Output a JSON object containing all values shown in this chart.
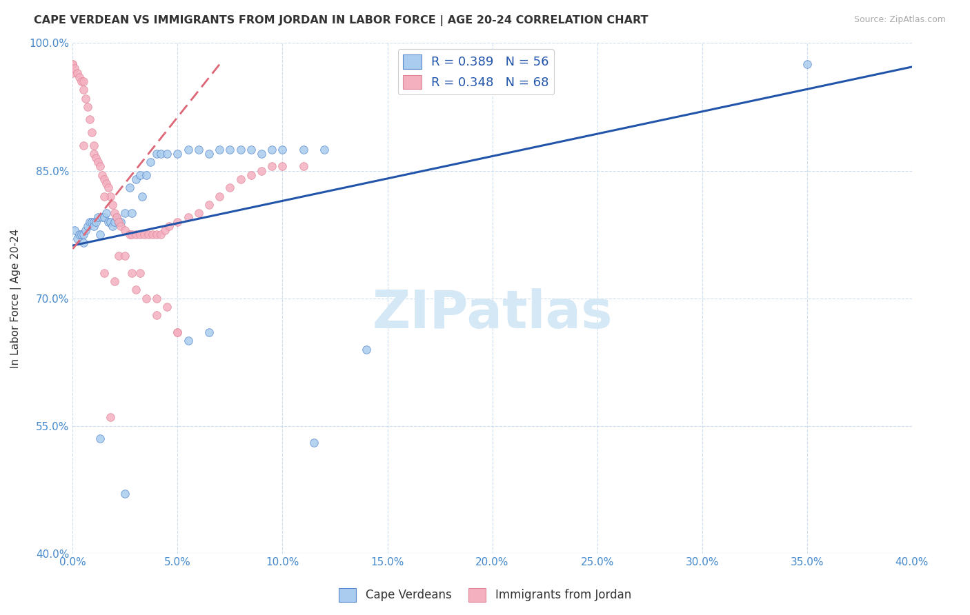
{
  "title": "CAPE VERDEAN VS IMMIGRANTS FROM JORDAN IN LABOR FORCE | AGE 20-24 CORRELATION CHART",
  "source": "Source: ZipAtlas.com",
  "ylabel": "In Labor Force | Age 20-24",
  "xmin": 0.0,
  "xmax": 0.4,
  "ymin": 0.4,
  "ymax": 1.0,
  "xtick_labels": [
    "0.0%",
    "5.0%",
    "10.0%",
    "15.0%",
    "20.0%",
    "25.0%",
    "30.0%",
    "35.0%",
    "40.0%"
  ],
  "xtick_vals": [
    0.0,
    0.05,
    0.1,
    0.15,
    0.2,
    0.25,
    0.3,
    0.35,
    0.4
  ],
  "ytick_labels": [
    "40.0%",
    "55.0%",
    "70.0%",
    "85.0%",
    "100.0%"
  ],
  "ytick_vals": [
    0.4,
    0.55,
    0.7,
    0.85,
    1.0
  ],
  "legend_label_blue": "R = 0.389   N = 56",
  "legend_label_pink": "R = 0.348   N = 68",
  "bottom_legend_blue": "Cape Verdeans",
  "bottom_legend_pink": "Immigrants from Jordan",
  "watermark": "ZIPatlas",
  "blue_face_color": "#aaccee",
  "pink_face_color": "#f5b0c0",
  "blue_edge_color": "#5588cc",
  "pink_edge_color": "#dd8899",
  "blue_line_color": "#2255aa",
  "pink_line_color": "#dd6677",
  "title_color": "#333333",
  "source_color": "#aaaaaa",
  "axis_color": "#4488cc",
  "grid_color": "#ccddf0",
  "watermark_color": "#d5e8f5",
  "blue_x": [
    0.001,
    0.002,
    0.003,
    0.004,
    0.005,
    0.005,
    0.006,
    0.007,
    0.008,
    0.009,
    0.01,
    0.01,
    0.011,
    0.012,
    0.013,
    0.014,
    0.015,
    0.016,
    0.017,
    0.018,
    0.019,
    0.02,
    0.021,
    0.022,
    0.023,
    0.025,
    0.027,
    0.028,
    0.03,
    0.032,
    0.033,
    0.035,
    0.037,
    0.04,
    0.042,
    0.045,
    0.05,
    0.055,
    0.06,
    0.065,
    0.07,
    0.075,
    0.08,
    0.085,
    0.09,
    0.095,
    0.1,
    0.11,
    0.12,
    0.35,
    0.013,
    0.025,
    0.055,
    0.065,
    0.115,
    0.14
  ],
  "blue_y": [
    0.78,
    0.77,
    0.775,
    0.775,
    0.775,
    0.765,
    0.78,
    0.785,
    0.79,
    0.79,
    0.79,
    0.785,
    0.79,
    0.795,
    0.775,
    0.795,
    0.795,
    0.8,
    0.79,
    0.79,
    0.785,
    0.79,
    0.795,
    0.79,
    0.79,
    0.8,
    0.83,
    0.8,
    0.84,
    0.845,
    0.82,
    0.845,
    0.86,
    0.87,
    0.87,
    0.87,
    0.87,
    0.875,
    0.875,
    0.87,
    0.875,
    0.875,
    0.875,
    0.875,
    0.87,
    0.875,
    0.875,
    0.875,
    0.875,
    0.975,
    0.535,
    0.47,
    0.65,
    0.66,
    0.53,
    0.64
  ],
  "pink_x": [
    0.0,
    0.0,
    0.0,
    0.001,
    0.002,
    0.003,
    0.004,
    0.005,
    0.005,
    0.006,
    0.007,
    0.008,
    0.009,
    0.01,
    0.01,
    0.011,
    0.012,
    0.013,
    0.014,
    0.015,
    0.016,
    0.017,
    0.018,
    0.019,
    0.02,
    0.021,
    0.022,
    0.023,
    0.025,
    0.027,
    0.028,
    0.03,
    0.032,
    0.034,
    0.036,
    0.038,
    0.04,
    0.042,
    0.044,
    0.046,
    0.05,
    0.055,
    0.06,
    0.065,
    0.07,
    0.075,
    0.08,
    0.085,
    0.09,
    0.095,
    0.1,
    0.11,
    0.005,
    0.015,
    0.015,
    0.02,
    0.018,
    0.03,
    0.035,
    0.04,
    0.05,
    0.022,
    0.025,
    0.028,
    0.032,
    0.04,
    0.045,
    0.05
  ],
  "pink_y": [
    0.975,
    0.975,
    0.965,
    0.97,
    0.965,
    0.96,
    0.955,
    0.955,
    0.945,
    0.935,
    0.925,
    0.91,
    0.895,
    0.88,
    0.87,
    0.865,
    0.86,
    0.855,
    0.845,
    0.84,
    0.835,
    0.83,
    0.82,
    0.81,
    0.8,
    0.795,
    0.79,
    0.785,
    0.78,
    0.775,
    0.775,
    0.775,
    0.775,
    0.775,
    0.775,
    0.775,
    0.775,
    0.775,
    0.78,
    0.785,
    0.79,
    0.795,
    0.8,
    0.81,
    0.82,
    0.83,
    0.84,
    0.845,
    0.85,
    0.855,
    0.855,
    0.855,
    0.88,
    0.82,
    0.73,
    0.72,
    0.56,
    0.71,
    0.7,
    0.68,
    0.66,
    0.75,
    0.75,
    0.73,
    0.73,
    0.7,
    0.69,
    0.66
  ],
  "blue_trendline_x": [
    0.0,
    0.4
  ],
  "blue_trendline_y": [
    0.762,
    0.972
  ],
  "pink_trendline_x": [
    0.0,
    0.07
  ],
  "pink_trendline_y": [
    0.758,
    0.975
  ]
}
